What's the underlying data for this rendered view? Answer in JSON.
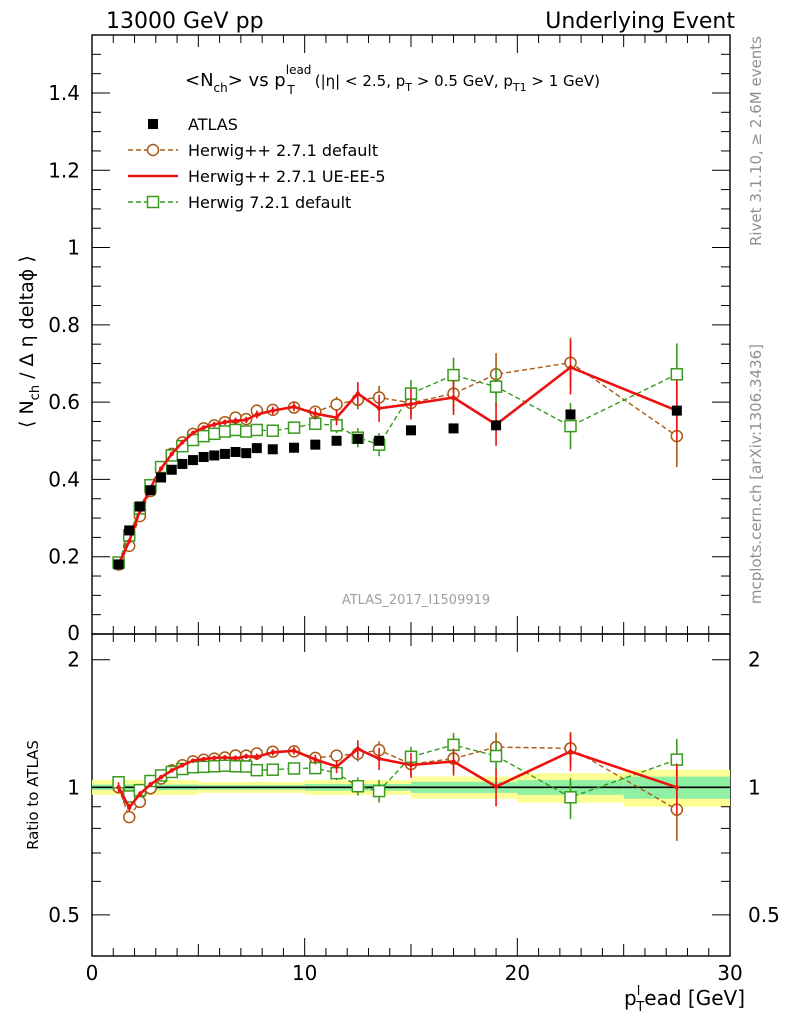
{
  "header": {
    "left": "13000 GeV pp",
    "right": "Underlying Event"
  },
  "side": {
    "rivet": "Rivet 3.1.10, ≥ 2.6M events",
    "mcplots": "mcplots.cern.ch [arXiv:1306.3436]"
  },
  "chart_data": {
    "type": "line",
    "title": "<Nch> vs pT lead (|η| < 2.5, pT > 0.5 GeV, pT1 > 1 GeV)",
    "xlabel": "pTlead [GeV]",
    "ylabel": "⟨ Nch / Δη deltaφ ⟩",
    "ratio_ylabel": "Ratio to ATLAS",
    "watermark": "ATLAS_2017_I1509919",
    "xlim": [
      0,
      30
    ],
    "ylim": [
      0,
      1.55
    ],
    "ratio_ylim": [
      0.4,
      2.3
    ],
    "ratio_log": true,
    "x_ticks": [
      "0",
      "10",
      "20",
      "30"
    ],
    "y_ticks": [
      "0.2",
      "0.4",
      "0.6",
      "0.8",
      "1",
      "1.2",
      "1.4"
    ],
    "ratio_ticks": [
      "0.5",
      "1",
      "2"
    ],
    "legend_position": "top-left",
    "series": [
      {
        "name": "ATLAS",
        "style": "data",
        "color": "#000000",
        "x": [
          1.25,
          1.75,
          2.25,
          2.75,
          3.25,
          3.75,
          4.25,
          4.75,
          5.25,
          5.75,
          6.25,
          6.75,
          7.25,
          7.75,
          8.5,
          9.5,
          10.5,
          11.5,
          12.5,
          13.5,
          15.0,
          17.0,
          19.0,
          22.5,
          27.5
        ],
        "y": [
          0.18,
          0.268,
          0.33,
          0.372,
          0.405,
          0.425,
          0.44,
          0.45,
          0.458,
          0.462,
          0.466,
          0.471,
          0.468,
          0.481,
          0.478,
          0.482,
          0.49,
          0.5,
          0.505,
          0.5,
          0.527,
          0.532,
          0.54,
          0.568,
          0.578
        ]
      },
      {
        "name": "Herwig++ 2.7.1 default",
        "style": "circle-dashed",
        "color": "#a85a14",
        "x": [
          1.25,
          1.75,
          2.25,
          2.75,
          3.25,
          3.75,
          4.25,
          4.75,
          5.25,
          5.75,
          6.25,
          6.75,
          7.25,
          7.75,
          8.5,
          9.5,
          10.5,
          11.5,
          12.5,
          13.5,
          15.0,
          17.0,
          19.0,
          22.5,
          27.5
        ],
        "y": [
          0.18,
          0.228,
          0.305,
          0.37,
          0.425,
          0.466,
          0.496,
          0.518,
          0.532,
          0.54,
          0.548,
          0.56,
          0.556,
          0.578,
          0.58,
          0.586,
          0.575,
          0.594,
          0.606,
          0.612,
          0.598,
          0.622,
          0.672,
          0.702,
          0.512
        ],
        "yerr": [
          0.005,
          0.005,
          0.005,
          0.005,
          0.005,
          0.005,
          0.006,
          0.006,
          0.006,
          0.007,
          0.007,
          0.008,
          0.008,
          0.01,
          0.01,
          0.012,
          0.015,
          0.02,
          0.025,
          0.03,
          0.035,
          0.045,
          0.055,
          0.065,
          0.08
        ]
      },
      {
        "name": "Herwig++ 2.7.1 UE-EE-5",
        "style": "solid",
        "color": "#ee1111",
        "x": [
          1.25,
          1.75,
          2.25,
          2.75,
          3.25,
          3.75,
          4.25,
          4.75,
          5.25,
          5.75,
          6.25,
          6.75,
          7.25,
          7.75,
          8.5,
          9.5,
          10.5,
          11.5,
          12.5,
          13.5,
          15.0,
          17.0,
          19.0,
          22.5,
          27.5
        ],
        "y": [
          0.18,
          0.24,
          0.318,
          0.378,
          0.428,
          0.466,
          0.496,
          0.52,
          0.534,
          0.542,
          0.548,
          0.552,
          0.554,
          0.568,
          0.578,
          0.588,
          0.57,
          0.56,
          0.622,
          0.584,
          0.595,
          0.612,
          0.542,
          0.69,
          0.578
        ],
        "yerr": [
          0.005,
          0.005,
          0.005,
          0.005,
          0.005,
          0.005,
          0.006,
          0.006,
          0.006,
          0.007,
          0.007,
          0.008,
          0.008,
          0.01,
          0.01,
          0.012,
          0.015,
          0.02,
          0.03,
          0.035,
          0.04,
          0.045,
          0.055,
          0.07,
          0.08
        ]
      },
      {
        "name": "Herwig 7.2.1 default",
        "style": "square-dashed",
        "color": "#3a9a1e",
        "x": [
          1.25,
          1.75,
          2.25,
          2.75,
          3.25,
          3.75,
          4.25,
          4.75,
          5.25,
          5.75,
          6.25,
          6.75,
          7.25,
          7.75,
          8.5,
          9.5,
          10.5,
          11.5,
          12.5,
          13.5,
          15.0,
          17.0,
          19.0,
          22.5,
          27.5
        ],
        "y": [
          0.185,
          0.255,
          0.325,
          0.385,
          0.432,
          0.462,
          0.486,
          0.502,
          0.512,
          0.518,
          0.524,
          0.528,
          0.524,
          0.528,
          0.526,
          0.534,
          0.544,
          0.54,
          0.508,
          0.49,
          0.622,
          0.67,
          0.64,
          0.538,
          0.672
        ],
        "yerr": [
          0.005,
          0.005,
          0.005,
          0.005,
          0.005,
          0.005,
          0.006,
          0.006,
          0.006,
          0.007,
          0.007,
          0.008,
          0.008,
          0.01,
          0.01,
          0.012,
          0.015,
          0.02,
          0.025,
          0.03,
          0.035,
          0.045,
          0.05,
          0.06,
          0.08
        ]
      }
    ],
    "ratio_band_bins": [
      0,
      5,
      10,
      15,
      20,
      25,
      30
    ],
    "ratio_band_outer": [
      0.04,
      0.03,
      0.04,
      0.06,
      0.08,
      0.1
    ],
    "ratio_band_inner": [
      0.015,
      0.012,
      0.018,
      0.03,
      0.04,
      0.06
    ]
  }
}
